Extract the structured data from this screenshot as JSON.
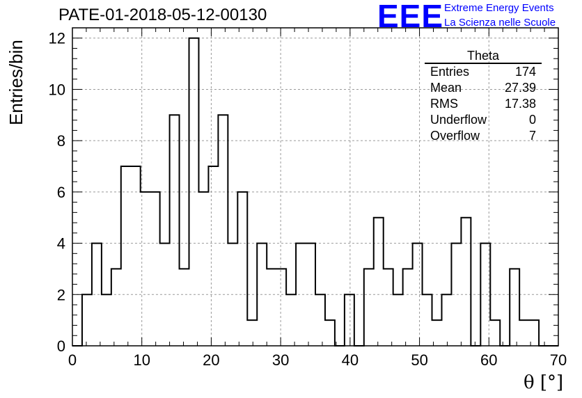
{
  "title": "PATE-01-2018-05-12-00130",
  "logo": {
    "mark": "EEE",
    "line1": "Extreme Energy Events",
    "line2": "La Scienza nelle Scuole",
    "color": "#0000ff"
  },
  "stats_box": {
    "title": "Theta",
    "rows": [
      {
        "label": "Entries",
        "value": "174"
      },
      {
        "label": "Mean",
        "value": "27.39"
      },
      {
        "label": "RMS",
        "value": "17.38"
      },
      {
        "label": "Underflow",
        "value": "0"
      },
      {
        "label": "Overflow",
        "value": "7"
      }
    ]
  },
  "chart_data": {
    "type": "bar",
    "subtype": "step-histogram",
    "xlabel": "θ [°]",
    "ylabel": "Entries/bin",
    "xlim": [
      0,
      70
    ],
    "ylim": [
      0,
      12.4
    ],
    "grid": true,
    "x_ticks": [
      "0",
      "10",
      "20",
      "30",
      "40",
      "50",
      "60",
      "70"
    ],
    "y_ticks": [
      "0",
      "2",
      "4",
      "6",
      "8",
      "10",
      "12"
    ],
    "bin_width": 1.4,
    "bin_start": 0,
    "values": [
      0,
      2,
      4,
      2,
      3,
      7,
      7,
      6,
      6,
      4,
      9,
      3,
      12,
      6,
      7,
      9,
      4,
      6,
      1,
      4,
      3,
      3,
      2,
      4,
      4,
      2,
      1,
      0,
      2,
      0,
      3,
      5,
      3,
      2,
      3,
      4,
      2,
      1,
      2,
      4,
      5,
      0,
      4,
      1,
      0,
      3,
      1,
      1,
      0,
      0
    ]
  }
}
